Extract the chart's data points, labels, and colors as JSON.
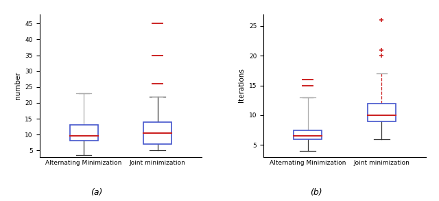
{
  "subplot_a": {
    "ylabel": "number",
    "xlabel_labels": [
      "Alternating Minimization",
      "Joint minimization"
    ],
    "ylim": [
      3,
      48
    ],
    "yticks": [
      5,
      10,
      15,
      20,
      25,
      30,
      35,
      40,
      45
    ],
    "boxes": [
      {
        "q1": 8,
        "median": 9.5,
        "q3": 13,
        "whisker_low": 3.5,
        "whisker_high": 23,
        "fliers_red": [],
        "fliers_gray": [
          23
        ],
        "upper_whisker_color": "gray",
        "upper_whisker_style": "-"
      },
      {
        "q1": 7,
        "median": 10.5,
        "q3": 14,
        "whisker_low": 5,
        "whisker_high": 22,
        "fliers_red": [
          26,
          35,
          45
        ],
        "fliers_gray": [
          22
        ],
        "upper_whisker_color": "black",
        "upper_whisker_style": "-"
      }
    ]
  },
  "subplot_b": {
    "ylabel": "Iterations",
    "xlabel_labels": [
      "Alternating Minimization",
      "Joint minimization"
    ],
    "ylim": [
      3,
      27
    ],
    "yticks": [
      5,
      10,
      15,
      20,
      25
    ],
    "boxes": [
      {
        "q1": 6,
        "median": 6.5,
        "q3": 7.5,
        "whisker_low": 4,
        "whisker_high": 13,
        "fliers_red": [
          15,
          16
        ],
        "fliers_gray": [
          13
        ],
        "upper_whisker_color": "gray",
        "upper_whisker_style": "-"
      },
      {
        "q1": 9,
        "median": 10,
        "q3": 12,
        "whisker_low": 6,
        "whisker_high": 17,
        "fliers_red_plus": [
          20,
          21,
          26
        ],
        "fliers_gray": [
          17
        ],
        "upper_whisker_color": "red",
        "upper_whisker_style": "--"
      }
    ]
  },
  "box_color": "#4455cc",
  "median_color": "#cc2222",
  "whisker_color": "#333333",
  "flier_red_color": "#cc2222",
  "flier_gray_color": "#aaaaaa"
}
